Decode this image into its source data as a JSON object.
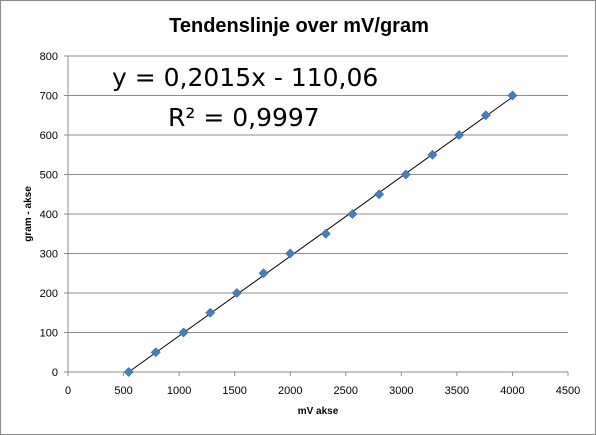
{
  "chart_data": {
    "type": "scatter",
    "title": "Tendenslinje over mV/gram",
    "xlabel": "mV akse",
    "ylabel": "gram - akse",
    "xlim": [
      0,
      4500
    ],
    "ylim": [
      0,
      800
    ],
    "xticks": [
      "0",
      "500",
      "1000",
      "1500",
      "2000",
      "2500",
      "3000",
      "3500",
      "4000",
      "4500"
    ],
    "yticks": [
      "0",
      "100",
      "200",
      "300",
      "400",
      "500",
      "600",
      "700",
      "800"
    ],
    "grid": "horizontal",
    "marker": "diamond",
    "marker_color": "#4a7ebb",
    "trendline": {
      "type": "linear",
      "slope": 0.2015,
      "intercept": -110.06,
      "color": "#000000",
      "equation": "y = 0,2015x - 110,06",
      "r_squared": "R² = 0,9997"
    },
    "series": [
      {
        "x": [
          546,
          790,
          1040,
          1280,
          1520,
          1760,
          2000,
          2320,
          2560,
          2800,
          3040,
          3280,
          3520,
          3760,
          4000
        ],
        "y": [
          0,
          50,
          100,
          150,
          200,
          250,
          300,
          350,
          400,
          450,
          500,
          550,
          600,
          650,
          700
        ]
      }
    ]
  }
}
